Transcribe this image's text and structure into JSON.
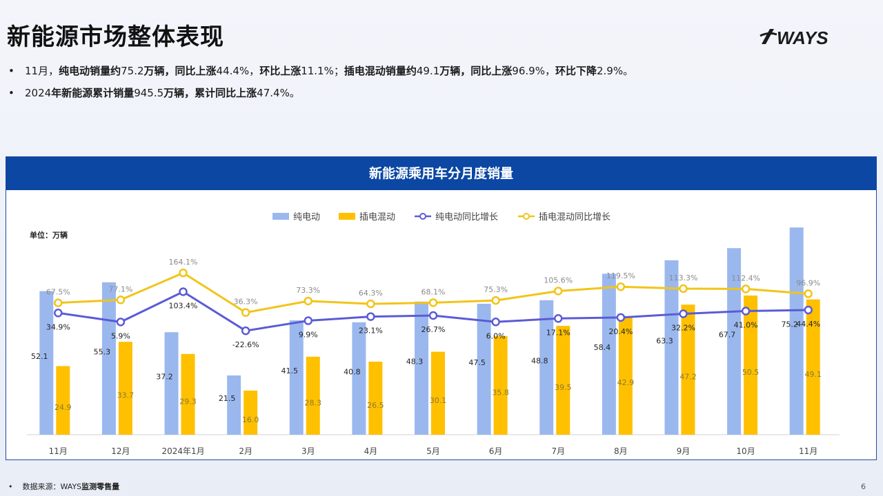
{
  "page": {
    "title": "新能源市场整体表现",
    "page_number": "6",
    "logo_text": "WAYS"
  },
  "bullets": [
    [
      {
        "t": "11月，",
        "b": false
      },
      {
        "t": "纯电动销量约",
        "b": true
      },
      {
        "t": "75.2",
        "b": false
      },
      {
        "t": "万辆，同比上涨",
        "b": true
      },
      {
        "t": "44.4%，",
        "b": false
      },
      {
        "t": "环比上涨",
        "b": true
      },
      {
        "t": "11.1%；",
        "b": false
      },
      {
        "t": "插电混动销量约",
        "b": true
      },
      {
        "t": "49.1",
        "b": false
      },
      {
        "t": "万辆，同比上涨",
        "b": true
      },
      {
        "t": "96.9%，",
        "b": false
      },
      {
        "t": "环比下降",
        "b": true
      },
      {
        "t": "2.9%。",
        "b": false
      }
    ],
    [
      {
        "t": "2024",
        "b": false
      },
      {
        "t": "年新能源累计销量",
        "b": true
      },
      {
        "t": "945.5",
        "b": false
      },
      {
        "t": "万辆，累计同比上涨",
        "b": true
      },
      {
        "t": "47.4%。",
        "b": false
      }
    ]
  ],
  "footer": {
    "prefix": "数据来源：",
    "ways": "WAYS",
    "suffix": "监测零售量"
  },
  "chart_data": {
    "type": "bar",
    "title": "新能源乘用车分月度销量",
    "unit_label": "单位：万辆",
    "categories": [
      "11月",
      "12月",
      "2024年1月",
      "2月",
      "3月",
      "4月",
      "5月",
      "6月",
      "7月",
      "8月",
      "9月",
      "10月",
      "11月"
    ],
    "series": [
      {
        "name": "纯电动",
        "kind": "bar",
        "color": "#9bb8ee",
        "values": [
          52.1,
          55.3,
          37.2,
          21.5,
          41.5,
          40.8,
          48.3,
          47.5,
          48.8,
          58.4,
          63.3,
          67.7,
          75.2
        ]
      },
      {
        "name": "插电混动",
        "kind": "bar",
        "color": "#ffc000",
        "values": [
          24.9,
          33.7,
          29.3,
          16.0,
          28.3,
          26.5,
          30.1,
          35.8,
          39.5,
          42.9,
          47.2,
          50.5,
          49.1
        ]
      },
      {
        "name": "纯电动同比增长",
        "kind": "line",
        "color": "#5b5bd6",
        "values": [
          34.9,
          5.9,
          103.4,
          -22.6,
          9.9,
          23.1,
          26.7,
          6.0,
          17.1,
          20.4,
          32.2,
          41.0,
          44.4
        ]
      },
      {
        "name": "插电混动同比增长",
        "kind": "line",
        "color": "#f2c418",
        "values": [
          67.5,
          77.1,
          164.1,
          36.3,
          73.3,
          64.3,
          68.1,
          75.3,
          105.6,
          119.5,
          113.3,
          112.4,
          96.9
        ]
      }
    ],
    "bar_label_format": "0.0",
    "line_label_format": "0.0%",
    "legend_position": "top-center",
    "grid": false
  }
}
